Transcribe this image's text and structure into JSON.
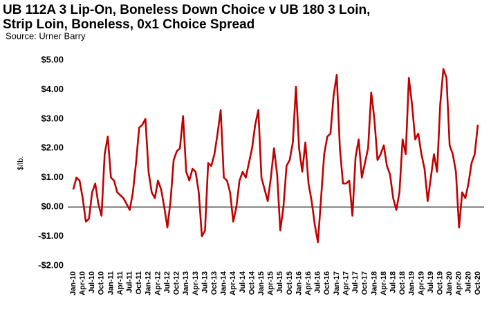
{
  "chart_data": {
    "type": "line",
    "title": [
      "UB 112A 3 Lip-On, Boneless Down Choice v UB 180 3 Loin,",
      "Strip Loin, Boneless, 0x1 Choice Spread"
    ],
    "subtitle": "Source: Urner Barry",
    "y_label": "$/lb.",
    "categories": [
      "Jan-10",
      null,
      null,
      "Apr-10",
      null,
      null,
      "Jul-10",
      null,
      null,
      "Oct-10",
      null,
      null,
      "Jan-11",
      null,
      null,
      "Apr-11",
      null,
      null,
      "Jul-11",
      null,
      null,
      "Oct-11",
      null,
      null,
      "Jan-12",
      null,
      null,
      "Apr-12",
      null,
      null,
      "Jul-12",
      null,
      null,
      "Oct-12",
      null,
      null,
      "Jan-13",
      null,
      null,
      "Apr-13",
      null,
      null,
      "Jul-13",
      null,
      null,
      "Oct-13",
      null,
      null,
      "Jan-14",
      null,
      null,
      "Apr-14",
      null,
      null,
      "Jul-14",
      null,
      null,
      "Oct-14",
      null,
      null,
      "Jan-15",
      null,
      null,
      "Apr-15",
      null,
      null,
      "Jul-15",
      null,
      null,
      "Oct-15",
      null,
      null,
      "Jan-16",
      null,
      null,
      "Apr-16",
      null,
      null,
      "Jul-16",
      null,
      null,
      "Oct-16",
      null,
      null,
      "Jan-17",
      null,
      null,
      "Apr-17",
      null,
      null,
      "Jul-17",
      null,
      null,
      "Oct-17",
      null,
      null,
      "Jan-18",
      null,
      null,
      "Apr-18",
      null,
      null,
      "Jul-18",
      null,
      null,
      "Oct-18",
      null,
      null,
      "Jan-19",
      null,
      null,
      "Apr-19",
      null,
      null,
      "Jul-19",
      null,
      null,
      "Oct-19",
      null,
      null,
      "Jan-20",
      null,
      null,
      "Apr-20",
      null,
      null,
      "Jul-20",
      null,
      null,
      "Oct-20"
    ],
    "values": [
      0.6,
      1.0,
      0.9,
      0.3,
      -0.5,
      -0.4,
      0.5,
      0.8,
      0.1,
      -0.3,
      1.8,
      2.4,
      1.0,
      0.9,
      0.5,
      0.4,
      0.3,
      0.1,
      -0.1,
      0.5,
      1.5,
      2.7,
      2.8,
      3.0,
      1.2,
      0.5,
      0.3,
      0.9,
      0.6,
      0.0,
      -0.7,
      0.2,
      1.6,
      1.9,
      2.0,
      3.1,
      1.2,
      0.9,
      1.3,
      1.2,
      0.5,
      -1.0,
      -0.8,
      1.5,
      1.4,
      1.8,
      2.5,
      3.3,
      1.0,
      0.9,
      0.5,
      -0.5,
      0.0,
      0.9,
      1.2,
      1.0,
      1.5,
      2.0,
      2.8,
      3.3,
      1.0,
      0.6,
      0.2,
      1.0,
      2.0,
      1.1,
      -0.8,
      0.0,
      1.4,
      1.6,
      2.2,
      4.1,
      2.0,
      1.2,
      2.2,
      0.8,
      0.2,
      -0.6,
      -1.2,
      0.3,
      1.8,
      2.4,
      2.5,
      3.8,
      4.5,
      2.0,
      0.8,
      0.8,
      0.9,
      -0.3,
      1.7,
      2.3,
      1.0,
      1.5,
      2.0,
      3.9,
      3.0,
      1.6,
      1.8,
      2.1,
      1.4,
      1.1,
      0.3,
      -0.1,
      0.5,
      2.3,
      1.8,
      4.4,
      3.5,
      2.3,
      2.5,
      1.8,
      1.3,
      0.2,
      1.0,
      1.8,
      1.2,
      3.5,
      4.7,
      4.4,
      2.1,
      1.8,
      1.2,
      -0.7,
      0.5,
      0.3,
      0.8,
      1.5,
      1.8,
      2.8
    ],
    "color": "#c00000",
    "ylim": [
      -2,
      5
    ],
    "yticks": [
      {
        "value": -2,
        "label": "-$2.00"
      },
      {
        "value": -1,
        "label": "-$1.00"
      },
      {
        "value": 0,
        "label": "$0.00"
      },
      {
        "value": 1,
        "label": "$1.00"
      },
      {
        "value": 2,
        "label": "$2.00"
      },
      {
        "value": 3,
        "label": "$3.00"
      },
      {
        "value": 4,
        "label": "$4.00"
      },
      {
        "value": 5,
        "label": "$5.00"
      }
    ],
    "grid": false
  }
}
